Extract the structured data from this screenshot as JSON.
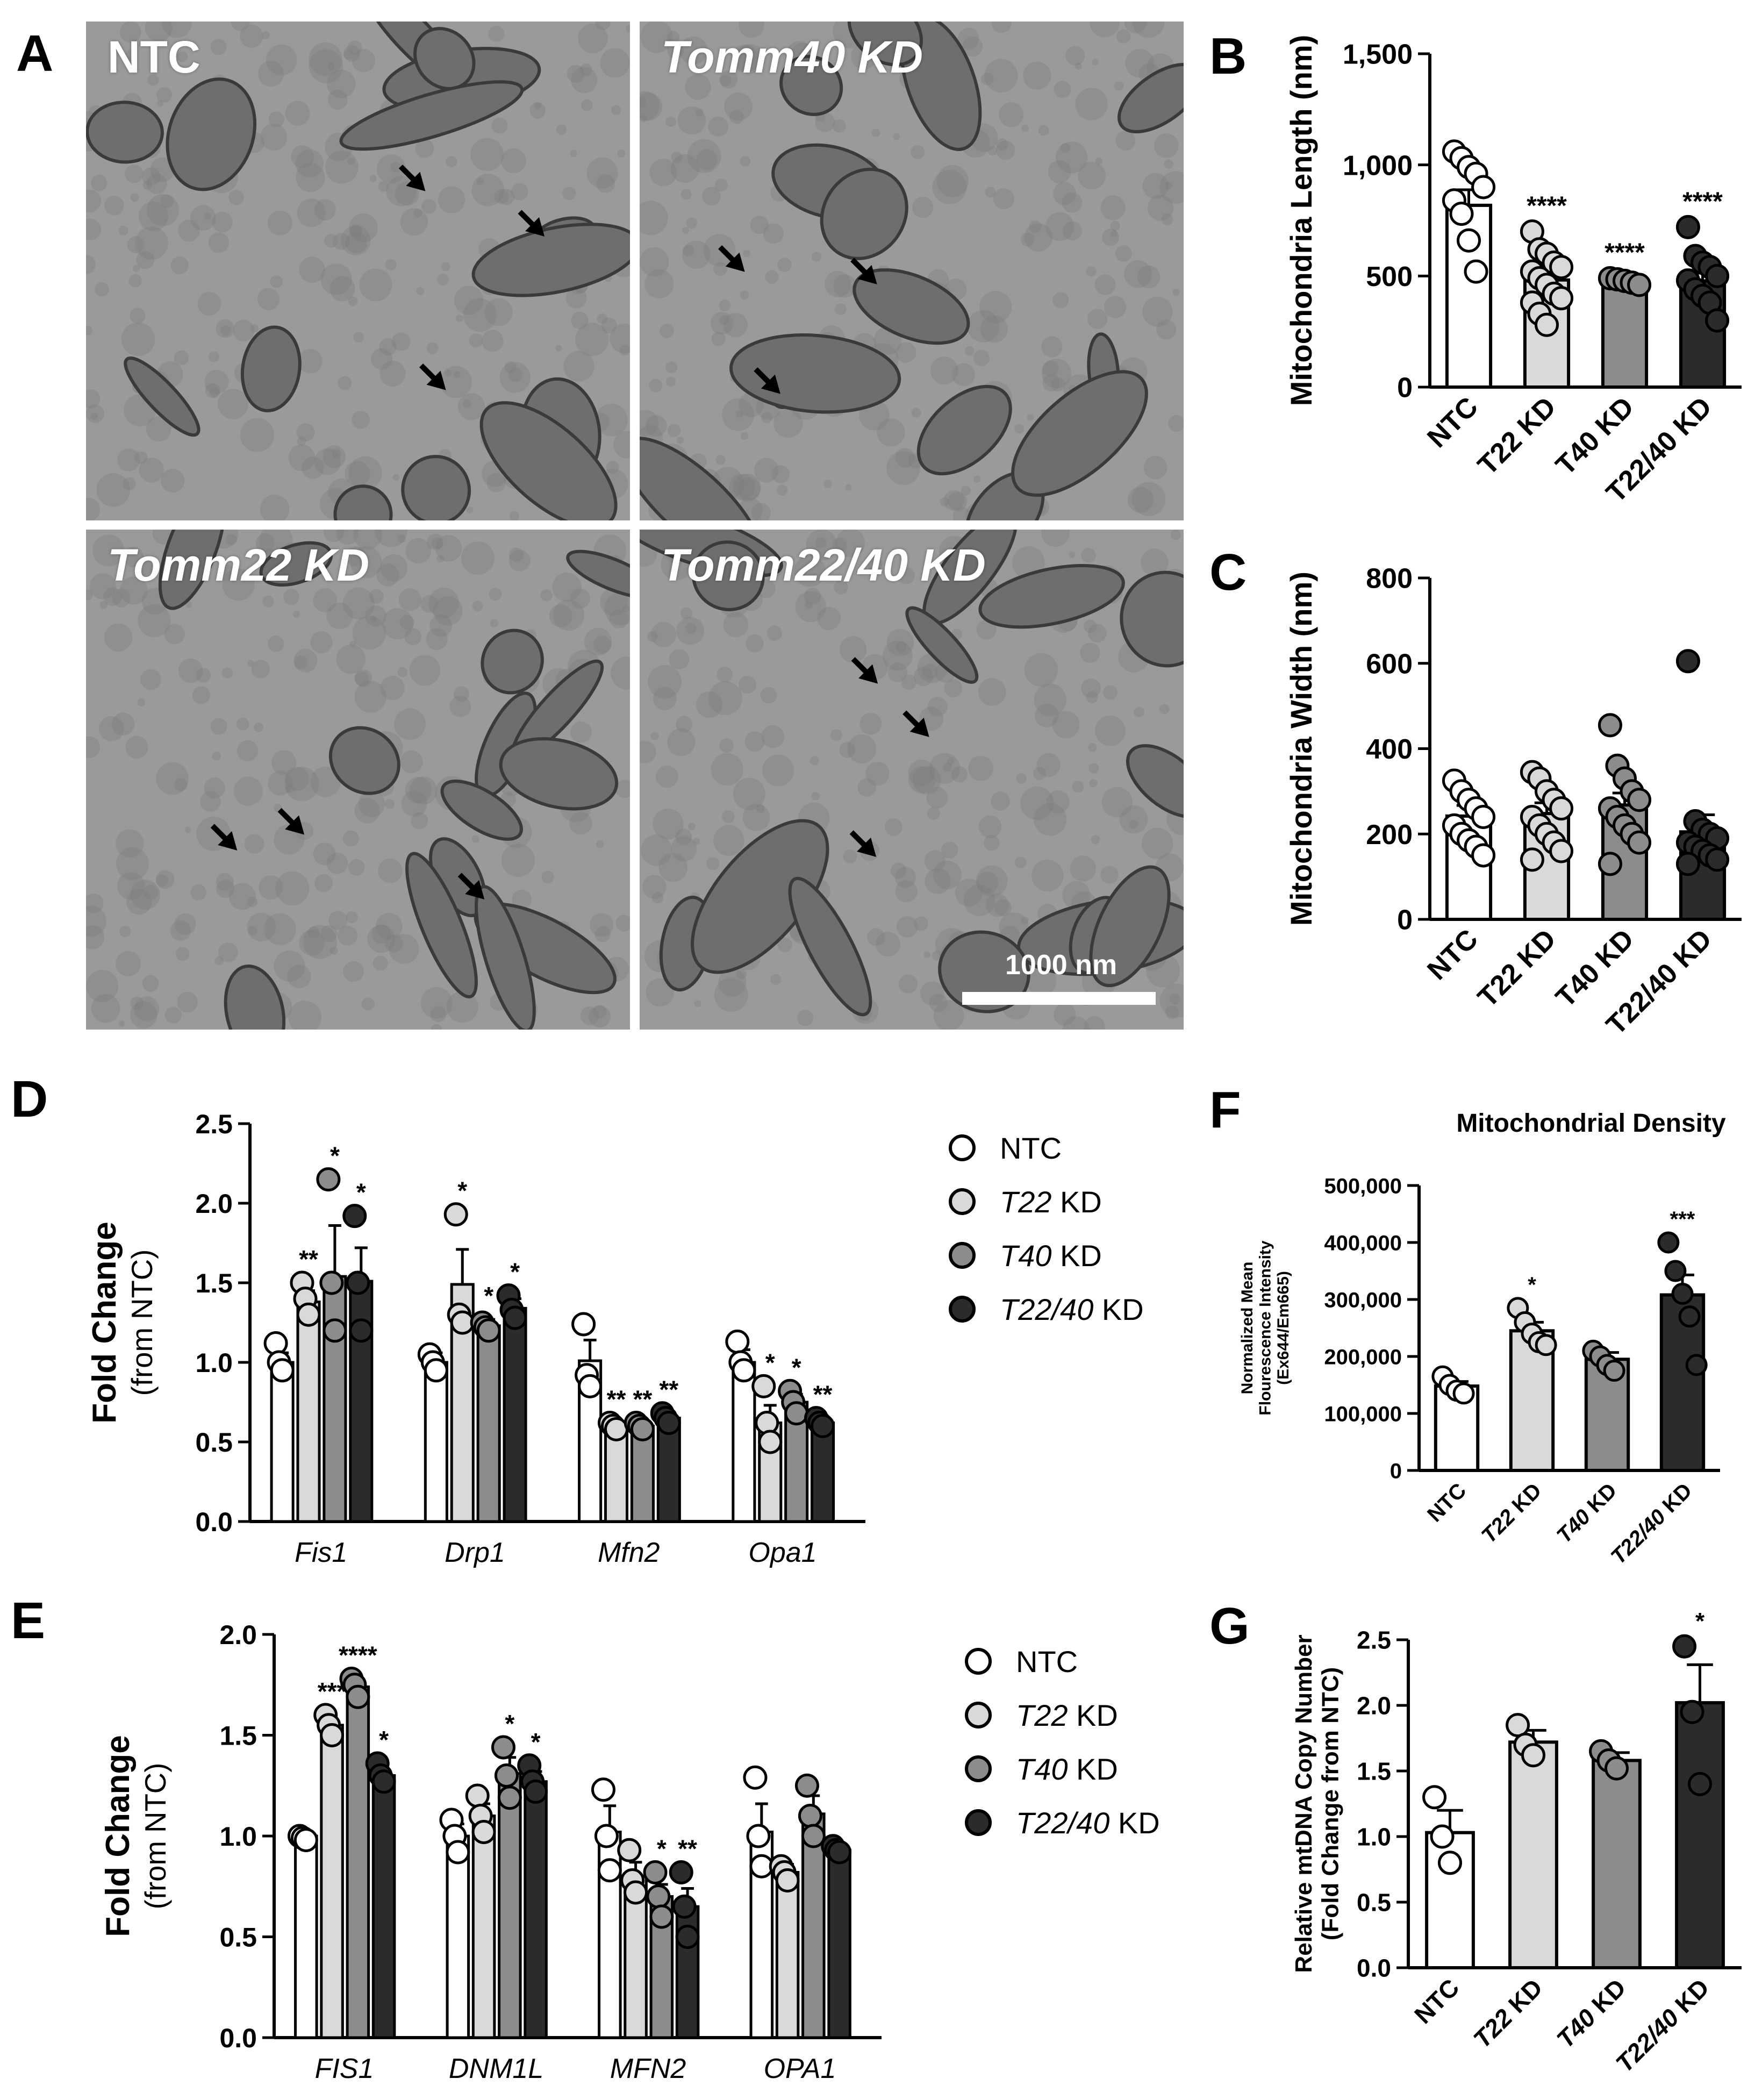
{
  "figure": {
    "panel_letters": [
      "A",
      "B",
      "C",
      "D",
      "E",
      "F",
      "G"
    ],
    "micrographs": [
      {
        "label": "NTC",
        "italic": false
      },
      {
        "label": "Tomm40 KD",
        "italic": true
      },
      {
        "label": "Tomm22 KD",
        "italic": true
      },
      {
        "label": "Tomm22/40 KD",
        "italic": true
      }
    ],
    "scale_bar_label": "1000 nm"
  },
  "colors": {
    "NTC": "#ffffff",
    "T22": "#d9d9d9",
    "T40": "#8c8c8c",
    "T22_40": "#2b2b2b",
    "axis": "#000000",
    "micrograph_base": "#9a9a9a",
    "mito": "#6e6e6e"
  },
  "chart_data": [
    {
      "panel": "B",
      "type": "bar",
      "categories": [
        "NTC",
        "T22 KD",
        "T40 KD",
        "T22/40 KD"
      ],
      "values": [
        818,
        482,
        475,
        478
      ],
      "errors": [
        70,
        30,
        10,
        35
      ],
      "points": [
        [
          1060,
          1030,
          990,
          960,
          900,
          840,
          780,
          660,
          520
        ],
        [
          700,
          620,
          600,
          560,
          540,
          520,
          490,
          460,
          420,
          400,
          380,
          330,
          280
        ],
        [
          490,
          485,
          478,
          470,
          460
        ],
        [
          720,
          590,
          560,
          540,
          500,
          480,
          440,
          410,
          380,
          300
        ]
      ],
      "significance": [
        "",
        "****",
        "****",
        "****"
      ],
      "ylabel": "Mitochondria Length (nm)",
      "yticks": [
        "0",
        "500",
        "1,000",
        "1,500"
      ],
      "ylim": [
        0,
        1500
      ]
    },
    {
      "panel": "C",
      "type": "bar",
      "categories": [
        "NTC",
        "T22 KD",
        "T40 KD",
        "T22/40 KD"
      ],
      "values": [
        242,
        248,
        268,
        205
      ],
      "errors": [
        25,
        25,
        28,
        40
      ],
      "points": [
        [
          325,
          300,
          280,
          260,
          240,
          220,
          200,
          185,
          170,
          150
        ],
        [
          345,
          330,
          300,
          280,
          260,
          240,
          220,
          200,
          180,
          160,
          140
        ],
        [
          455,
          360,
          330,
          300,
          280,
          260,
          240,
          220,
          200,
          180,
          130
        ],
        [
          605,
          230,
          210,
          200,
          190,
          180,
          170,
          160,
          150,
          140,
          130
        ]
      ],
      "significance": [
        "",
        "",
        "",
        ""
      ],
      "ylabel": "Mitochondria Width (nm)",
      "yticks": [
        "0",
        "200",
        "400",
        "600",
        "800"
      ],
      "ylim": [
        0,
        800
      ]
    },
    {
      "panel": "D",
      "type": "bar",
      "groups": [
        "Fis1",
        "Drp1",
        "Mfn2",
        "Opa1"
      ],
      "series": [
        {
          "name": "NTC",
          "name_italic_part": "",
          "name_rest": "NTC",
          "values": [
            1.0,
            1.0,
            1.01,
            1.0
          ],
          "errors": [
            0.06,
            0.06,
            0.13,
            0.08
          ],
          "points": [
            [
              1.12,
              1.0,
              0.95
            ],
            [
              1.05,
              1.0,
              0.95
            ],
            [
              1.24,
              0.92,
              0.85
            ],
            [
              1.13,
              1.0,
              0.95
            ]
          ]
        },
        {
          "name": "T22 KD",
          "name_italic_part": "T22",
          "name_rest": " KD",
          "values": [
            1.38,
            1.49,
            0.6,
            0.62
          ],
          "errors": [
            0.07,
            0.22,
            0.02,
            0.11
          ],
          "points": [
            [
              1.5,
              1.4,
              1.3
            ],
            [
              1.93,
              1.3,
              1.25
            ],
            [
              0.62,
              0.6,
              0.58
            ],
            [
              0.85,
              0.62,
              0.5
            ]
          ]
        },
        {
          "name": "T40 KD",
          "name_italic_part": "T40",
          "name_rest": " KD",
          "values": [
            1.54,
            1.23,
            0.6,
            0.75
          ],
          "errors": [
            0.32,
            0.04,
            0.02,
            0.05
          ],
          "points": [
            [
              2.15,
              1.5,
              1.2
            ],
            [
              1.25,
              1.22,
              1.2
            ],
            [
              0.62,
              0.6,
              0.58
            ],
            [
              0.82,
              0.75,
              0.68
            ]
          ]
        },
        {
          "name": "T22/40 KD",
          "name_italic_part": "T22/40",
          "name_rest": " KD",
          "values": [
            1.51,
            1.34,
            0.65,
            0.62
          ],
          "errors": [
            0.21,
            0.06,
            0.03,
            0.03
          ],
          "points": [
            [
              1.92,
              1.5,
              1.2
            ],
            [
              1.42,
              1.33,
              1.28
            ],
            [
              0.68,
              0.65,
              0.62
            ],
            [
              0.65,
              0.62,
              0.6
            ]
          ]
        }
      ],
      "significance": [
        [
          "",
          "**",
          "*",
          "*"
        ],
        [
          "",
          "*",
          "*",
          "*"
        ],
        [
          "",
          "**",
          "**",
          "**"
        ],
        [
          "",
          "*",
          "*",
          "**"
        ]
      ],
      "ylabel_line1": "Fold  Change",
      "ylabel_line2": "(from NTC)",
      "yticks": [
        "0.0",
        "0.5",
        "1.0",
        "1.5",
        "2.0",
        "2.5"
      ],
      "ylim": [
        0,
        2.5
      ]
    },
    {
      "panel": "E",
      "type": "bar",
      "groups": [
        "FIS1",
        "DNM1L",
        "MFN2",
        "OPA1"
      ],
      "series": [
        {
          "name": "NTC",
          "name_italic_part": "",
          "name_rest": "NTC",
          "values": [
            1.0,
            1.0,
            1.02,
            1.02
          ],
          "errors": [
            0.02,
            0.06,
            0.13,
            0.14
          ],
          "points": [
            [
              1.0,
              0.99,
              0.98
            ],
            [
              1.08,
              1.0,
              0.92
            ],
            [
              1.23,
              1.0,
              0.83
            ],
            [
              1.29,
              1.0,
              0.85
            ]
          ]
        },
        {
          "name": "T22 KD",
          "name_italic_part": "T22",
          "name_rest": " KD",
          "values": [
            1.55,
            1.1,
            0.8,
            0.82
          ],
          "errors": [
            0.03,
            0.06,
            0.07,
            0.04
          ],
          "points": [
            [
              1.6,
              1.55,
              1.5
            ],
            [
              1.2,
              1.1,
              1.02
            ],
            [
              0.93,
              0.78,
              0.72
            ],
            [
              0.85,
              0.82,
              0.78
            ]
          ]
        },
        {
          "name": "T40 KD",
          "name_italic_part": "T40",
          "name_rest": " KD",
          "values": [
            1.74,
            1.31,
            0.7,
            1.11
          ],
          "errors": [
            0.04,
            0.08,
            0.06,
            0.09
          ],
          "points": [
            [
              1.78,
              1.75,
              1.69
            ],
            [
              1.44,
              1.3,
              1.19
            ],
            [
              0.82,
              0.7,
              0.6
            ],
            [
              1.25,
              1.1,
              1.0
            ]
          ]
        },
        {
          "name": "T22/40 KD",
          "name_italic_part": "T22/40",
          "name_rest": " KD",
          "values": [
            1.3,
            1.27,
            0.65,
            0.93
          ],
          "errors": [
            0.03,
            0.05,
            0.09,
            0.01
          ],
          "points": [
            [
              1.36,
              1.3,
              1.27
            ],
            [
              1.35,
              1.27,
              1.22
            ],
            [
              0.82,
              0.65,
              0.5
            ],
            [
              0.95,
              0.93,
              0.92
            ]
          ]
        }
      ],
      "significance": [
        [
          "",
          "***",
          "****",
          "*"
        ],
        [
          "",
          "",
          "*",
          "*"
        ],
        [
          "",
          "",
          "*",
          "**"
        ],
        [
          "",
          "",
          "",
          ""
        ]
      ],
      "ylabel_line1": "Fold  Change",
      "ylabel_line2": "(from NTC)",
      "yticks": [
        "0.0",
        "0.5",
        "1.0",
        "1.5",
        "2.0"
      ],
      "ylim": [
        0,
        2.0
      ]
    },
    {
      "panel": "F",
      "type": "bar",
      "title": "Mitochondrial  Density",
      "categories": [
        "NTC",
        "T22 KD",
        "T40 KD",
        "T22/40 KD"
      ],
      "category_italic_parts": [
        "",
        "T22",
        "T40",
        "T22/40"
      ],
      "category_rest": [
        "NTC",
        " KD",
        " KD",
        " KD"
      ],
      "values": [
        148000,
        245000,
        195000,
        308000
      ],
      "errors": [
        8000,
        15000,
        12000,
        35000
      ],
      "points": [
        [
          165000,
          150000,
          140000,
          135000
        ],
        [
          285000,
          260000,
          240000,
          225000,
          220000
        ],
        [
          210000,
          200000,
          185000,
          175000
        ],
        [
          400000,
          350000,
          310000,
          270000,
          185000
        ]
      ],
      "significance": [
        "",
        "*",
        "",
        "***"
      ],
      "ylabel_line1": "Normalized Mean",
      "ylabel_line2": "Flourescence Intensity",
      "ylabel_line3": "(Ex644/Em665)",
      "yticks": [
        "0",
        "100,000",
        "200,000",
        "300,000",
        "400,000",
        "500,000"
      ],
      "ylim": [
        0,
        500000
      ]
    },
    {
      "panel": "G",
      "type": "bar",
      "categories": [
        "NTC",
        "T22 KD",
        "T40 KD",
        "T22/40 KD"
      ],
      "category_italic_parts": [
        "",
        "T22",
        "T40",
        "T22/40"
      ],
      "category_rest": [
        "NTC",
        " KD",
        " KD",
        " KD"
      ],
      "values": [
        1.03,
        1.72,
        1.58,
        2.02
      ],
      "errors": [
        0.17,
        0.09,
        0.06,
        0.29
      ],
      "points": [
        [
          1.3,
          1.0,
          0.8
        ],
        [
          1.85,
          1.7,
          1.62
        ],
        [
          1.65,
          1.58,
          1.52
        ],
        [
          2.45,
          1.95,
          1.4
        ]
      ],
      "significance": [
        "",
        "",
        "",
        "*"
      ],
      "ylabel_line1": "Relative mtDNA Copy Number",
      "ylabel_line2": "(Fold  Change from NTC)",
      "yticks": [
        "0.0",
        "0.5",
        "1.0",
        "1.5",
        "2.0",
        "2.5"
      ],
      "ylim": [
        0,
        2.5
      ]
    }
  ]
}
